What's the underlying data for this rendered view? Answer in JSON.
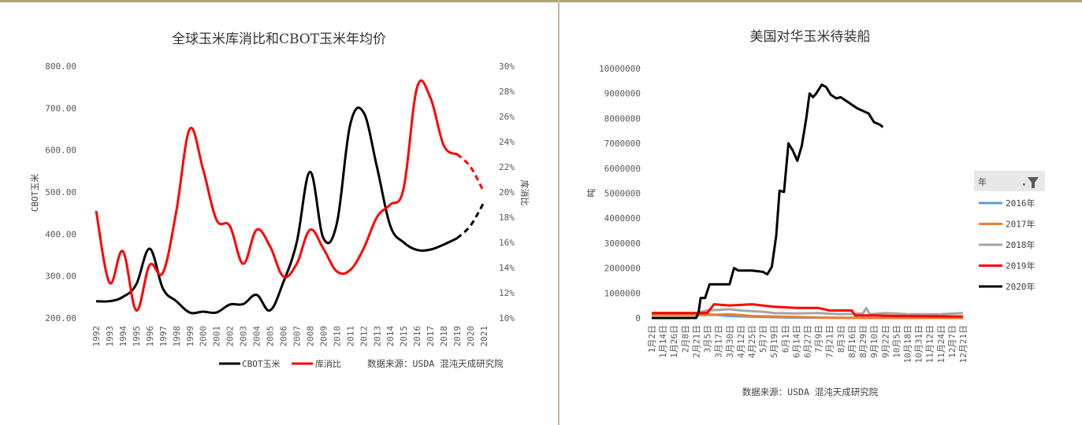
{
  "chart_data": [
    {
      "type": "line",
      "title": "全球玉米库消比和CBOT玉米年均价",
      "ylabel": "CBOT玉米",
      "y2label": "库消比",
      "ylim": [
        200,
        800
      ],
      "y2lim": [
        0.1,
        0.3
      ],
      "yticks": [
        "200.00",
        "300.00",
        "400.00",
        "500.00",
        "600.00",
        "700.00",
        "800.00"
      ],
      "y2ticks": [
        "10%",
        "12%",
        "14%",
        "16%",
        "18%",
        "20%",
        "22%",
        "24%",
        "26%",
        "28%",
        "30%"
      ],
      "categories": [
        "1992",
        "1993",
        "1994",
        "1995",
        "1996",
        "1997",
        "1998",
        "1999",
        "2000",
        "2001",
        "2002",
        "2003",
        "2004",
        "2005",
        "2006",
        "2007",
        "2008",
        "2009",
        "2010",
        "2011",
        "2012",
        "2013",
        "2014",
        "2015",
        "2016",
        "2017",
        "2018",
        "2019",
        "2020",
        "2021"
      ],
      "series": [
        {
          "name": "CBOT玉米",
          "color": "#000000",
          "axis": "left",
          "dashed_from": "2019",
          "values": [
            240,
            240,
            250,
            280,
            365,
            270,
            240,
            213,
            215,
            213,
            232,
            233,
            255,
            218,
            285,
            380,
            548,
            390,
            425,
            660,
            690,
            560,
            420,
            380,
            362,
            363,
            375,
            390,
            420,
            475
          ]
        },
        {
          "name": "库消比",
          "color": "#ff0000",
          "axis": "right",
          "dashed_from": "2019",
          "values": [
            0.185,
            0.128,
            0.153,
            0.106,
            0.142,
            0.136,
            0.185,
            0.25,
            0.218,
            0.178,
            0.173,
            0.143,
            0.17,
            0.157,
            0.133,
            0.143,
            0.17,
            0.155,
            0.137,
            0.138,
            0.155,
            0.18,
            0.19,
            0.203,
            0.283,
            0.275,
            0.237,
            0.23,
            0.22,
            0.2
          ]
        }
      ],
      "source": "数据来源：USDA 混沌天成研究院"
    },
    {
      "type": "line",
      "title": "美国对华玉米待装船",
      "ylabel": "吨",
      "ylim": [
        0,
        10000000
      ],
      "yticks": [
        "0",
        "1000000",
        "2000000",
        "3000000",
        "4000000",
        "5000000",
        "6000000",
        "7000000",
        "8000000",
        "9000000",
        "10000000"
      ],
      "x_labels": [
        "1月2日",
        "1月14日",
        "1月26日",
        "2月8日",
        "2月21日",
        "3月5日",
        "3月17日",
        "3月30日",
        "4月12日",
        "4月25日",
        "5月7日",
        "5月19日",
        "6月1日",
        "6月14日",
        "6月27日",
        "7月9日",
        "7月21日",
        "8月3日",
        "8月16日",
        "8月29日",
        "9月10日",
        "9月22日",
        "10月5日",
        "10月18日",
        "10月31日",
        "11月12日",
        "11月24日",
        "12月7日",
        "12月21日"
      ],
      "legend_title": "年",
      "series": [
        {
          "name": "2016年",
          "color": "#5b9bd5",
          "points": [
            [
              0,
              150000
            ],
            [
              3,
              180000
            ],
            [
              5,
              150000
            ],
            [
              7,
              80000
            ],
            [
              10,
              40000
            ],
            [
              12,
              20000
            ],
            [
              20,
              0
            ],
            [
              28,
              0
            ]
          ]
        },
        {
          "name": "2017年",
          "color": "#ed7d31",
          "points": [
            [
              0,
              120000
            ],
            [
              5,
              120000
            ],
            [
              7,
              150000
            ],
            [
              9,
              80000
            ],
            [
              12,
              50000
            ],
            [
              16,
              10000
            ],
            [
              20,
              0
            ],
            [
              28,
              0
            ]
          ]
        },
        {
          "name": "2018年",
          "color": "#a5a5a5",
          "points": [
            [
              0,
              200000
            ],
            [
              4,
              200000
            ],
            [
              5,
              300000
            ],
            [
              7,
              350000
            ],
            [
              8,
              300000
            ],
            [
              10,
              250000
            ],
            [
              11,
              200000
            ],
            [
              13,
              180000
            ],
            [
              15,
              200000
            ],
            [
              17,
              150000
            ],
            [
              19,
              180000
            ],
            [
              19.3,
              400000
            ],
            [
              19.6,
              150000
            ],
            [
              21,
              200000
            ],
            [
              23,
              150000
            ],
            [
              26,
              150000
            ],
            [
              28,
              200000
            ]
          ]
        },
        {
          "name": "2019年",
          "color": "#ff0000",
          "points": [
            [
              0,
              200000
            ],
            [
              5,
              200000
            ],
            [
              5.6,
              550000
            ],
            [
              7,
              500000
            ],
            [
              9,
              550000
            ],
            [
              11,
              450000
            ],
            [
              13,
              400000
            ],
            [
              15,
              400000
            ],
            [
              16,
              300000
            ],
            [
              18,
              300000
            ],
            [
              18.3,
              100000
            ],
            [
              20,
              100000
            ],
            [
              22,
              80000
            ],
            [
              28,
              60000
            ]
          ]
        },
        {
          "name": "2020年",
          "color": "#000000",
          "points": [
            [
              0,
              0
            ],
            [
              2,
              0
            ],
            [
              4,
              0
            ],
            [
              4.2,
              200000
            ],
            [
              4.4,
              800000
            ],
            [
              4.8,
              800000
            ],
            [
              5.2,
              1350000
            ],
            [
              7,
              1350000
            ],
            [
              7.4,
              2000000
            ],
            [
              7.8,
              1900000
            ],
            [
              9,
              1900000
            ],
            [
              10,
              1850000
            ],
            [
              10.4,
              1750000
            ],
            [
              10.8,
              2050000
            ],
            [
              11.2,
              3300000
            ],
            [
              11.5,
              5100000
            ],
            [
              11.9,
              5050000
            ],
            [
              12.3,
              7000000
            ],
            [
              12.7,
              6700000
            ],
            [
              13.1,
              6300000
            ],
            [
              13.5,
              6900000
            ],
            [
              13.9,
              8000000
            ],
            [
              14.2,
              9000000
            ],
            [
              14.5,
              8850000
            ],
            [
              14.8,
              9000000
            ],
            [
              15.3,
              9350000
            ],
            [
              15.7,
              9250000
            ],
            [
              16.1,
              8950000
            ],
            [
              16.6,
              8800000
            ],
            [
              17,
              8850000
            ],
            [
              17.5,
              8700000
            ],
            [
              18,
              8550000
            ],
            [
              18.5,
              8400000
            ],
            [
              19,
              8300000
            ],
            [
              19.5,
              8200000
            ],
            [
              20,
              7850000
            ],
            [
              20.5,
              7750000
            ],
            [
              20.8,
              7650000
            ]
          ]
        }
      ],
      "source": "数据来源：USDA 混沌天成研究院"
    }
  ]
}
